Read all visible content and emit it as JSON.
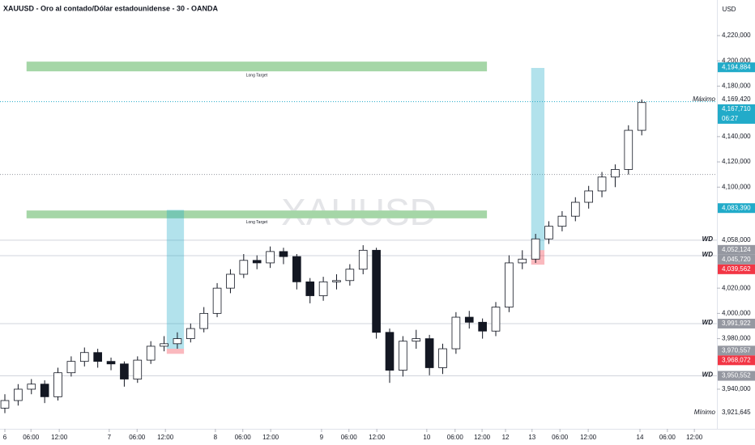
{
  "chart_data": {
    "type": "candlestick",
    "title": "XAUUSD - Oro al contado/Dólar estadounidense - 30 - OANDA",
    "watermark": "XAUUSD",
    "currency": "USD",
    "candle_color": "#131722",
    "xlim": [
      -1.1,
      161
    ],
    "ylim": [
      3908.6,
      4248.2
    ],
    "xticks": [
      {
        "value": 0,
        "label": "6"
      },
      {
        "value": 5.9,
        "label": "06:00"
      },
      {
        "value": 12.3,
        "label": "12:00"
      },
      {
        "value": 23.6,
        "label": "7"
      },
      {
        "value": 29.9,
        "label": "06:00"
      },
      {
        "value": 36.3,
        "label": "12:00"
      },
      {
        "value": 47.6,
        "label": "8"
      },
      {
        "value": 53.8,
        "label": "06:00"
      },
      {
        "value": 60.1,
        "label": "12:00"
      },
      {
        "value": 71.6,
        "label": "9"
      },
      {
        "value": 77.8,
        "label": "06:00"
      },
      {
        "value": 84.1,
        "label": "12:00"
      },
      {
        "value": 95.4,
        "label": "10"
      },
      {
        "value": 101.8,
        "label": "06:00"
      },
      {
        "value": 107.9,
        "label": "12:00"
      },
      {
        "value": 113.2,
        "label": "12"
      },
      {
        "value": 119.2,
        "label": "13"
      },
      {
        "value": 125.5,
        "label": "06:00"
      },
      {
        "value": 131.9,
        "label": "12:00"
      },
      {
        "value": 143.6,
        "label": "14"
      },
      {
        "value": 149.8,
        "label": "06:00"
      },
      {
        "value": 155.9,
        "label": "12:00"
      }
    ],
    "yticks": [
      {
        "value": 4220,
        "label": "4,220,000"
      },
      {
        "value": 4200,
        "label": "4,200,000"
      },
      {
        "value": 4180,
        "label": "4,180,000"
      },
      {
        "value": 4140,
        "label": "4,140,000"
      },
      {
        "value": 4120,
        "label": "4,120,000"
      },
      {
        "value": 4100,
        "label": "4,100,000"
      },
      {
        "value": 4020,
        "label": "4,020,000"
      },
      {
        "value": 4000,
        "label": "4,000,000"
      },
      {
        "value": 3980,
        "label": "3,980,000"
      },
      {
        "value": 3940,
        "label": "3,940,000"
      }
    ],
    "x": [
      0,
      3,
      6,
      9,
      12,
      15,
      18,
      21,
      24,
      27,
      30,
      33,
      36,
      39,
      42,
      45,
      48,
      51,
      54,
      57,
      60,
      63,
      66,
      69,
      72,
      75,
      78,
      81,
      84,
      87,
      90,
      93,
      96,
      99,
      102,
      105,
      108,
      111,
      114,
      117,
      120,
      123,
      126,
      129,
      132,
      135,
      138,
      141,
      144
    ],
    "open": [
      3925,
      3931,
      3940,
      3944,
      3934,
      3953,
      3962,
      3969,
      3962,
      3960,
      3948,
      3963,
      3974,
      3976,
      3980,
      3988,
      4000,
      4020,
      4031,
      4042,
      4040,
      4049,
      4045,
      4025,
      4014,
      4025,
      4026,
      4035,
      4050,
      3985,
      3955,
      3978,
      3980,
      3957,
      3972,
      3997,
      3993,
      3986,
      4005,
      4040,
      4043,
      4059,
      4069,
      4077,
      4088,
      4097,
      4108,
      4114,
      4145
    ],
    "high": [
      3936,
      3944,
      3948,
      3947,
      3957,
      3966,
      3973,
      3972,
      3965,
      3962,
      3966,
      3978,
      3982,
      3985,
      3992,
      4005,
      4024,
      4035,
      4047,
      4046,
      4053,
      4052,
      4047,
      4028,
      4029,
      4031,
      4039,
      4054,
      4052,
      3988,
      3982,
      3987,
      3983,
      3976,
      4001,
      4002,
      3996,
      4009,
      4046,
      4050,
      4063,
      4073,
      4081,
      4092,
      4101,
      4112,
      4118,
      4149,
      4169.42
    ],
    "low": [
      3921,
      3927,
      3936,
      3929,
      3931,
      3950,
      3958,
      3957,
      3955,
      3942,
      3945,
      3960,
      3970,
      3972,
      3977,
      3985,
      3997,
      4016,
      4028,
      4035,
      4036,
      4039,
      4019,
      4008,
      4010,
      4019,
      4022,
      4031,
      3980,
      3945,
      3950,
      3972,
      3951,
      3952,
      3968,
      3988,
      3980,
      3982,
      4001,
      4035,
      4040,
      4055,
      4065,
      4073,
      4083,
      4092,
      4100,
      4110,
      4141
    ],
    "close": [
      3931,
      3940,
      3944,
      3934,
      3953,
      3962,
      3969,
      3962,
      3960,
      3948,
      3963,
      3974,
      3976,
      3980,
      3988,
      4000,
      4020,
      4031,
      4042,
      4040,
      4049,
      4045,
      4025,
      4014,
      4025,
      4026,
      4035,
      4050,
      3985,
      3955,
      3978,
      3980,
      3957,
      3972,
      3997,
      3993,
      3986,
      4005,
      4040,
      4043,
      4059,
      4069,
      4077,
      4088,
      4097,
      4108,
      4114,
      4145,
      4167
    ],
    "zones": [
      {
        "label": "Long Target",
        "x": [
          4.9,
          109
        ],
        "y": [
          4191.7,
          4199.4
        ],
        "color": "#a5d6a7"
      },
      {
        "label": "Long Target",
        "x": [
          4.9,
          109
        ],
        "y": [
          4075.3,
          4081.5
        ],
        "color": "#a5d6a7"
      }
    ],
    "positions": [
      {
        "x": [
          36.6,
          40.5
        ],
        "target": [
          3972,
          4082
        ],
        "stop": [
          3968,
          3972
        ]
      },
      {
        "x": [
          119,
          122
        ],
        "target": [
          4050.1,
          4194.4
        ],
        "stop": [
          4038.6,
          4050.1
        ]
      }
    ],
    "dotted_lines": [
      {
        "value": 4167.71,
        "color": "#22abc9"
      },
      {
        "value": 4110,
        "color": "#9598a1"
      }
    ],
    "price_lines": [
      {
        "value": 4058,
        "note": "WD"
      },
      {
        "value": 4045.72,
        "note": "WD"
      },
      {
        "value": 3991.922,
        "note": "WD"
      },
      {
        "value": 3950.552,
        "note": "WD"
      }
    ],
    "price_labels": [
      {
        "value": 4194.884,
        "label": "4,194,884",
        "style": "teal"
      },
      {
        "value": 4169.42,
        "label": "4,169,420",
        "style": "plain",
        "note": "Máximo"
      },
      {
        "value": 4167.71,
        "label": "4,167,710",
        "style": "teal",
        "countdown": "06:27"
      },
      {
        "value": 4083.39,
        "label": "4,083,390",
        "style": "teal"
      },
      {
        "value": 4058,
        "label": "4,058,000",
        "style": "plain"
      },
      {
        "value": 4052.124,
        "label": "4,052,124",
        "style": "gray"
      },
      {
        "value": 4045.72,
        "label": "4,045,720",
        "style": "gray"
      },
      {
        "value": 4039.562,
        "label": "4,039,562",
        "style": "red"
      },
      {
        "value": 3991.922,
        "label": "3,991,922",
        "style": "gray"
      },
      {
        "value": 3970.557,
        "label": "3,970,557",
        "style": "gray"
      },
      {
        "value": 3968.072,
        "label": "3,968,072",
        "style": "red"
      },
      {
        "value": 3950.552,
        "label": "3,950,552",
        "style": "gray"
      },
      {
        "value": 3921.645,
        "label": "3,921,645",
        "style": "plain",
        "note": "Mínimo"
      }
    ]
  }
}
